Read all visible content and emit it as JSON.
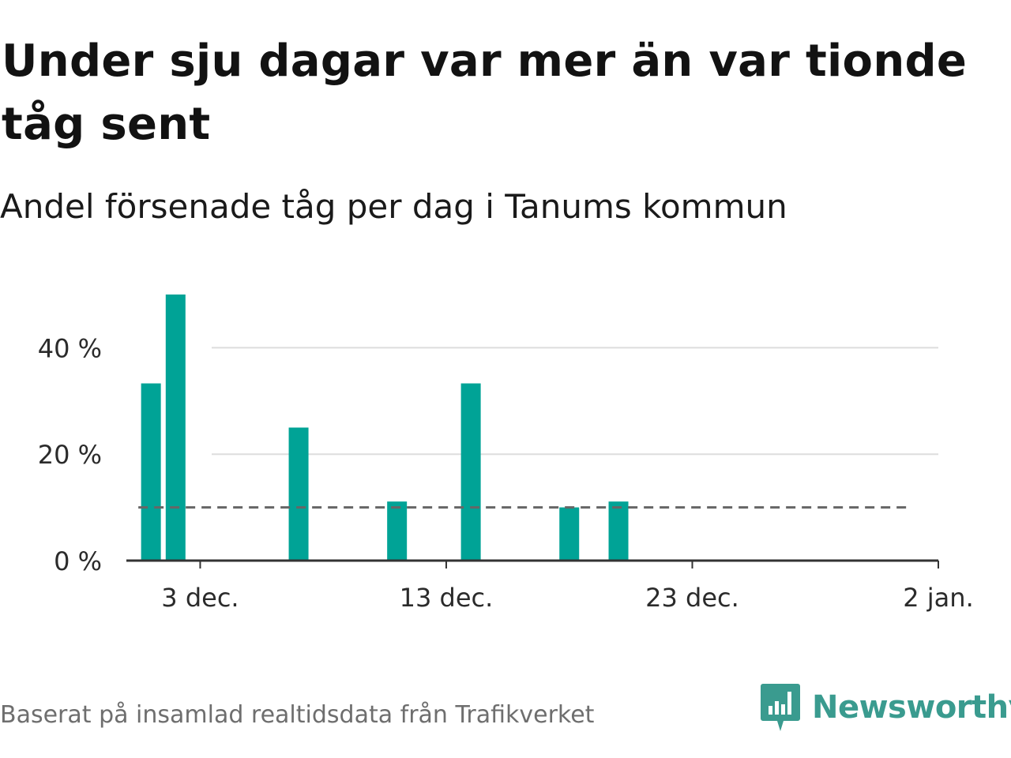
{
  "header": {
    "title": "Under sju dagar var mer än var tionde tåg sent",
    "subtitle": "Andel försenade tåg per dag i Tanums kommun"
  },
  "footer": {
    "source": "Baserat på insamlad realtidsdata från Trafikverket",
    "brand": "Newsworthy",
    "brand_icon": "newsworthy-logo-icon"
  },
  "colors": {
    "bar": "#00a396",
    "reference_line": "#666666",
    "gridline": "#dddddd",
    "axis": "#333333",
    "brand": "#3a9b8f"
  },
  "chart_data": {
    "type": "bar",
    "title": "Under sju dagar var mer än var tionde tåg sent",
    "subtitle": "Andel försenade tåg per dag i Tanums kommun",
    "xlabel": "",
    "ylabel": "",
    "x_axis_type": "date",
    "x_domain": [
      "2019-11-30",
      "2020-01-02"
    ],
    "ylim": [
      0,
      55
    ],
    "y_ticks": [
      0,
      20,
      40
    ],
    "y_tick_labels": [
      "0 %",
      "20 %",
      "40 %"
    ],
    "x_ticks": [
      "2019-12-03",
      "2019-12-13",
      "2019-12-23",
      "2020-01-02"
    ],
    "x_tick_labels": [
      "3 dec.",
      "13 dec.",
      "23 dec.",
      "2 jan."
    ],
    "grid": "horizontal",
    "series": [
      {
        "points": [
          {
            "x": "2019-12-01",
            "y": 33.3
          },
          {
            "x": "2019-12-02",
            "y": 50.0
          },
          {
            "x": "2019-12-07",
            "y": 25.0
          },
          {
            "x": "2019-12-11",
            "y": 11.1
          },
          {
            "x": "2019-12-14",
            "y": 33.3
          },
          {
            "x": "2019-12-18",
            "y": 10.0
          },
          {
            "x": "2019-12-20",
            "y": 11.1
          }
        ]
      }
    ],
    "reference_line": {
      "y": 10,
      "x_from": "2019-12-01",
      "x_to": "2019-12-31",
      "style": "dashed"
    }
  }
}
